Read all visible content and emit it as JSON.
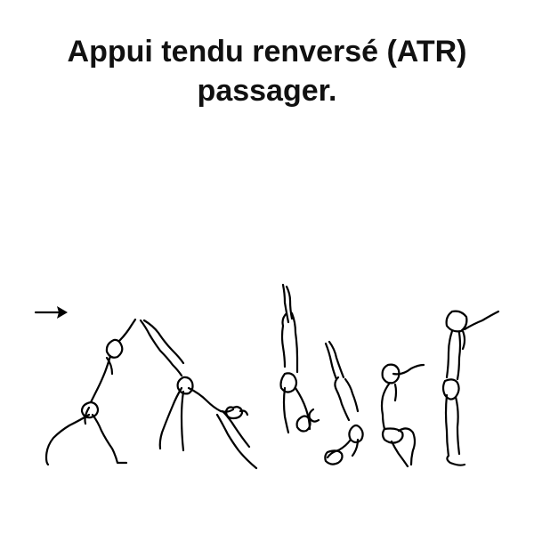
{
  "title": {
    "line1": "Appui tendu renversé (ATR)",
    "line2": "passager."
  },
  "illustration": {
    "direction_arrow": "right-arrow-icon",
    "figures": [
      "lunge-start",
      "kick-up",
      "handstand",
      "step-down",
      "squat-recovery",
      "stand-finish"
    ],
    "ink_color": "#000000"
  }
}
